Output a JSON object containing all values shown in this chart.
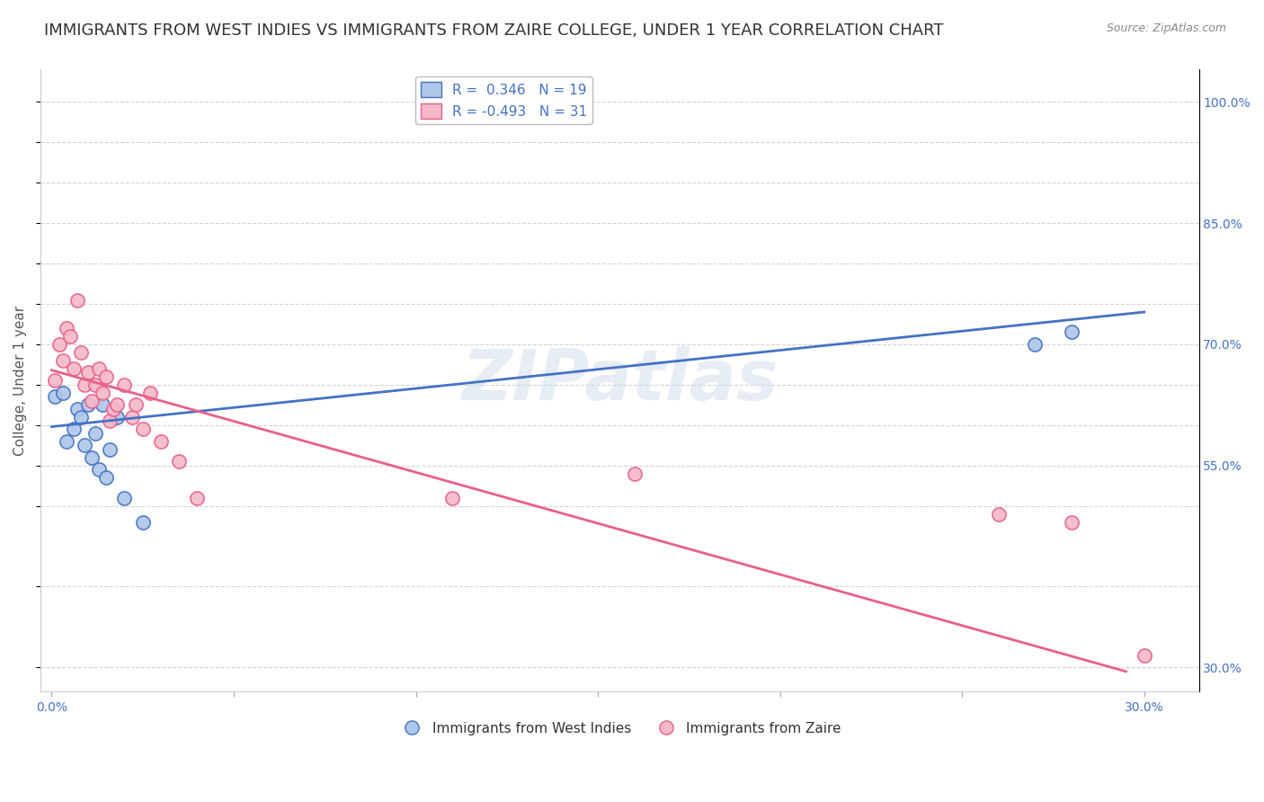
{
  "title": "IMMIGRANTS FROM WEST INDIES VS IMMIGRANTS FROM ZAIRE COLLEGE, UNDER 1 YEAR CORRELATION CHART",
  "source_text": "Source: ZipAtlas.com",
  "ylabel": "College, Under 1 year",
  "watermark": "ZIPatlas",
  "xlim": [
    -0.003,
    0.315
  ],
  "ylim": [
    0.27,
    1.04
  ],
  "xtick_vals": [
    0.0,
    0.05,
    0.1,
    0.15,
    0.2,
    0.25,
    0.3
  ],
  "xtick_labels": [
    "0.0%",
    "",
    "",
    "",
    "",
    "",
    "30.0%"
  ],
  "ytick_vals": [
    0.3,
    0.4,
    0.5,
    0.55,
    0.6,
    0.65,
    0.7,
    0.75,
    0.8,
    0.85,
    0.9,
    0.95,
    1.0
  ],
  "ytick_right_labels": [
    "30.0%",
    "",
    "",
    "55.0%",
    "",
    "",
    "70.0%",
    "",
    "",
    "85.0%",
    "",
    "",
    "100.0%"
  ],
  "legend_r1": "R =  0.346   N = 19",
  "legend_r2": "R = -0.493   N = 31",
  "color_blue": "#aec6e8",
  "color_pink": "#f5b8c8",
  "line_blue": "#4472c4",
  "line_pink": "#e8608a",
  "west_indies_x": [
    0.001,
    0.003,
    0.004,
    0.006,
    0.007,
    0.008,
    0.009,
    0.01,
    0.011,
    0.012,
    0.013,
    0.014,
    0.015,
    0.016,
    0.018,
    0.02,
    0.025,
    0.27,
    0.28
  ],
  "west_indies_y": [
    0.635,
    0.64,
    0.58,
    0.595,
    0.62,
    0.61,
    0.575,
    0.625,
    0.56,
    0.59,
    0.545,
    0.625,
    0.535,
    0.57,
    0.61,
    0.51,
    0.48,
    0.7,
    0.715
  ],
  "zaire_x": [
    0.001,
    0.002,
    0.003,
    0.004,
    0.005,
    0.006,
    0.007,
    0.008,
    0.009,
    0.01,
    0.011,
    0.012,
    0.013,
    0.014,
    0.015,
    0.016,
    0.017,
    0.018,
    0.02,
    0.022,
    0.023,
    0.025,
    0.027,
    0.03,
    0.035,
    0.04,
    0.11,
    0.16,
    0.26,
    0.28,
    0.3
  ],
  "zaire_y": [
    0.655,
    0.7,
    0.68,
    0.72,
    0.71,
    0.67,
    0.755,
    0.69,
    0.65,
    0.665,
    0.63,
    0.65,
    0.67,
    0.64,
    0.66,
    0.605,
    0.62,
    0.625,
    0.65,
    0.61,
    0.625,
    0.595,
    0.64,
    0.58,
    0.555,
    0.51,
    0.51,
    0.54,
    0.49,
    0.48,
    0.315
  ],
  "blue_line_x": [
    0.0,
    0.3
  ],
  "blue_line_y": [
    0.598,
    0.74
  ],
  "pink_line_x": [
    0.0,
    0.295
  ],
  "pink_line_y": [
    0.668,
    0.295
  ],
  "background_color": "#ffffff",
  "grid_color": "#d0d0d0",
  "title_fontsize": 13,
  "axis_fontsize": 11,
  "tick_fontsize": 10,
  "dot_size": 120
}
